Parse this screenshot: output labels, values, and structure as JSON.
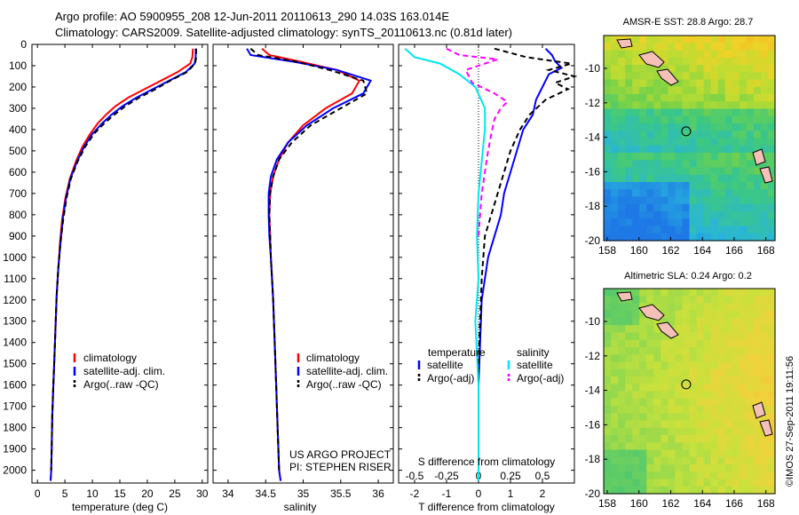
{
  "header": {
    "line1": "Argo profile: AO 5900955_208 12-Jun-2011 20110613_290 14.03S 163.014E",
    "line2": "Climatology: CARS2009. Satellite-adjusted climatology: synTS_20110613.nc (0.81d later)"
  },
  "credits": {
    "project": "US ARGO PROJECT",
    "pi": "PI: STEPHEN RISER",
    "stamp": "©IMOS 27-Sep-2011 19:11:56"
  },
  "colors": {
    "climatology": "#ff0000",
    "satellite": "#0000ff",
    "argo": "#000000",
    "satellite_salinity": "#00e5ee",
    "argo_salinity": "#ff00ff",
    "land": "#f4c0b8"
  },
  "chart_data": [
    {
      "type": "line",
      "id": "temperature",
      "xlabel": "temperature (deg C)",
      "ylabel": "",
      "xlim": [
        -1,
        31
      ],
      "ylim": [
        2060,
        0
      ],
      "xticks": [
        0,
        5,
        10,
        15,
        20,
        25,
        30
      ],
      "yticks": [
        0,
        100,
        200,
        300,
        400,
        500,
        600,
        700,
        800,
        900,
        1000,
        1100,
        1200,
        1300,
        1400,
        1500,
        1600,
        1700,
        1800,
        1900,
        2000
      ],
      "legend": [
        "climatology",
        "satellite-adj. clim.",
        "Argo(..raw -QC)"
      ],
      "series": [
        {
          "name": "climatology",
          "color": "#ff0000",
          "dash": false,
          "x": [
            28.3,
            28.2,
            27.8,
            25.5,
            22.5,
            19.5,
            16.5,
            14.2,
            12.5,
            11.0,
            9.6,
            8.2,
            7.0,
            5.9,
            5.1,
            4.5,
            4.1,
            3.8,
            3.5,
            3.3,
            3.1,
            2.9,
            2.7,
            2.6,
            2.5,
            2.4
          ],
          "y": [
            20,
            60,
            90,
            130,
            170,
            210,
            250,
            290,
            330,
            370,
            420,
            480,
            550,
            630,
            720,
            820,
            930,
            1050,
            1180,
            1320,
            1460,
            1600,
            1740,
            1880,
            2000,
            2050
          ]
        },
        {
          "name": "satellite-adj. clim.",
          "color": "#0000ff",
          "dash": false,
          "x": [
            28.8,
            28.8,
            28.6,
            27.0,
            24.0,
            21.0,
            18.0,
            15.5,
            13.5,
            11.8,
            10.0,
            8.5,
            7.2,
            6.0,
            5.2,
            4.6,
            4.2,
            3.8,
            3.5,
            3.3,
            3.1,
            2.9,
            2.7,
            2.6,
            2.5,
            2.4
          ],
          "y": [
            20,
            60,
            90,
            130,
            170,
            210,
            250,
            290,
            330,
            370,
            420,
            480,
            550,
            630,
            720,
            820,
            930,
            1050,
            1180,
            1320,
            1460,
            1600,
            1740,
            1880,
            2000,
            2050
          ]
        },
        {
          "name": "Argo(..raw -QC)",
          "color": "#000000",
          "dash": true,
          "x": [
            28.9,
            28.9,
            28.7,
            27.2,
            24.2,
            21.5,
            18.5,
            16.0,
            14.0,
            12.2,
            10.3,
            8.7,
            7.3,
            6.1,
            5.3,
            4.7,
            4.2,
            3.8,
            3.5,
            3.3,
            3.1,
            2.9,
            2.7,
            2.6,
            2.5
          ],
          "y": [
            20,
            60,
            90,
            130,
            170,
            210,
            250,
            290,
            330,
            370,
            420,
            480,
            550,
            630,
            720,
            820,
            930,
            1050,
            1180,
            1320,
            1460,
            1600,
            1740,
            1880,
            2000
          ]
        }
      ]
    },
    {
      "type": "line",
      "id": "salinity",
      "xlabel": "salinity",
      "xlim": [
        33.8,
        36.2
      ],
      "ylim": [
        2060,
        0
      ],
      "xticks": [
        34,
        34.5,
        35,
        35.5,
        36
      ],
      "legend": [
        "climatology",
        "satellite-adj. clim.",
        "Argo(..raw -QC)"
      ],
      "series": [
        {
          "name": "climatology",
          "color": "#ff0000",
          "dash": false,
          "x": [
            34.45,
            34.55,
            34.95,
            35.45,
            35.75,
            35.65,
            35.3,
            35.0,
            34.8,
            34.68,
            34.6,
            34.56,
            34.55,
            34.56,
            34.57,
            34.6,
            34.62,
            34.64,
            34.66,
            34.68,
            34.7
          ],
          "y": [
            20,
            50,
            80,
            120,
            170,
            230,
            300,
            380,
            460,
            540,
            620,
            700,
            800,
            900,
            1000,
            1200,
            1400,
            1600,
            1800,
            2000,
            2050
          ]
        },
        {
          "name": "satellite-adj. clim.",
          "color": "#0000ff",
          "dash": false,
          "x": [
            34.25,
            34.3,
            34.85,
            35.45,
            35.9,
            35.8,
            35.4,
            35.05,
            34.8,
            34.65,
            34.57,
            34.54,
            34.54,
            34.55,
            34.57,
            34.6,
            34.62,
            34.64,
            34.66,
            34.68,
            34.7
          ],
          "y": [
            20,
            50,
            80,
            120,
            170,
            230,
            300,
            380,
            460,
            540,
            620,
            700,
            800,
            900,
            1000,
            1200,
            1400,
            1600,
            1800,
            2000,
            2050
          ]
        },
        {
          "name": "Argo(..raw -QC)",
          "color": "#000000",
          "dash": true,
          "x": [
            34.3,
            34.4,
            34.9,
            35.35,
            35.8,
            35.85,
            35.5,
            35.1,
            34.85,
            34.68,
            34.6,
            34.56,
            34.55,
            34.56,
            34.57,
            34.6,
            34.62,
            34.64,
            34.66,
            34.68
          ],
          "y": [
            20,
            50,
            80,
            120,
            170,
            230,
            300,
            380,
            460,
            540,
            620,
            700,
            800,
            900,
            1000,
            1200,
            1400,
            1600,
            1800,
            2000
          ]
        }
      ]
    },
    {
      "type": "line",
      "id": "difference",
      "xlabel": "T difference from climatology",
      "top_label": "S difference from climatology",
      "xlim": [
        -2.5,
        3
      ],
      "ylim": [
        2060,
        0
      ],
      "xticks": [
        -2,
        -1,
        0,
        1,
        2
      ],
      "sticks_labels": [
        "-0.5",
        "-0.25",
        "0",
        "0.25",
        "0.5"
      ],
      "sticks_values": [
        -2,
        -1,
        0,
        1,
        2
      ],
      "legend_headers": [
        "temperature",
        "salinity"
      ],
      "legend": [
        "satellite",
        "Argo(-adj)",
        "satellite",
        "Argo(-adj)"
      ],
      "series": [
        {
          "name": "satellite",
          "color": "#0000ff",
          "dash": false,
          "x": [
            2.1,
            2.3,
            2.4,
            2.6,
            2.2,
            2.0,
            1.8,
            1.7,
            1.4,
            1.2,
            1.0,
            0.8,
            0.7,
            0.5,
            0.3,
            0.1,
            0.05,
            0.0,
            0.0,
            0.0
          ],
          "y": [
            20,
            50,
            80,
            110,
            140,
            200,
            260,
            330,
            400,
            500,
            600,
            700,
            800,
            900,
            1000,
            1200,
            1400,
            1600,
            1800,
            2050
          ]
        },
        {
          "name": "Argo(-adj)",
          "color": "#000000",
          "dash": true,
          "x": [
            0.5,
            1.5,
            2.9,
            2.2,
            3.0,
            2.4,
            2.8,
            2.1,
            1.6,
            1.3,
            1.0,
            0.8,
            0.6,
            0.4,
            0.2,
            0.1,
            0.05,
            0.0,
            0.0
          ],
          "y": [
            20,
            60,
            90,
            120,
            150,
            180,
            210,
            260,
            330,
            400,
            500,
            600,
            700,
            800,
            900,
            1100,
            1300,
            1500,
            1700
          ]
        },
        {
          "name": "satellite",
          "color": "#00e5ee",
          "dash": false,
          "x": [
            -2.3,
            -2.0,
            -1.2,
            -0.6,
            -0.1,
            0.2,
            0.2,
            0.1,
            0.0,
            -0.05,
            0.0,
            -0.1,
            0.0,
            0.0
          ],
          "y": [
            20,
            60,
            90,
            140,
            200,
            300,
            400,
            550,
            700,
            900,
            1100,
            1300,
            1600,
            2050
          ]
        },
        {
          "name": "Argo(-adj)",
          "color": "#ff00ff",
          "dash": true,
          "x": [
            -1.0,
            -0.6,
            0.6,
            -0.4,
            -0.2,
            0.5,
            0.9,
            0.7,
            0.5,
            0.4,
            0.3,
            0.2,
            0.1,
            0.05,
            0.0
          ],
          "y": [
            20,
            50,
            70,
            120,
            180,
            230,
            270,
            300,
            350,
            420,
            500,
            600,
            700,
            800,
            900
          ]
        }
      ]
    }
  ],
  "maps": [
    {
      "title": "AMSR-E SST: 28.8 Argo: 28.7",
      "xticks": [
        "158",
        "160",
        "162",
        "164",
        "166",
        "168"
      ],
      "yticks": [
        "-10",
        "-12",
        "-14",
        "-16",
        "-18",
        "-20"
      ],
      "marker": {
        "lon": 163.0,
        "lat": -14.03
      }
    },
    {
      "title": "Altimetric SLA: 0.24 Argo: 0.2",
      "xticks": [
        "158",
        "160",
        "162",
        "164",
        "166",
        "168"
      ],
      "yticks": [
        "-10",
        "-12",
        "-14",
        "-16",
        "-18",
        "-20"
      ],
      "marker": {
        "lon": 163.0,
        "lat": -14.03
      }
    }
  ]
}
